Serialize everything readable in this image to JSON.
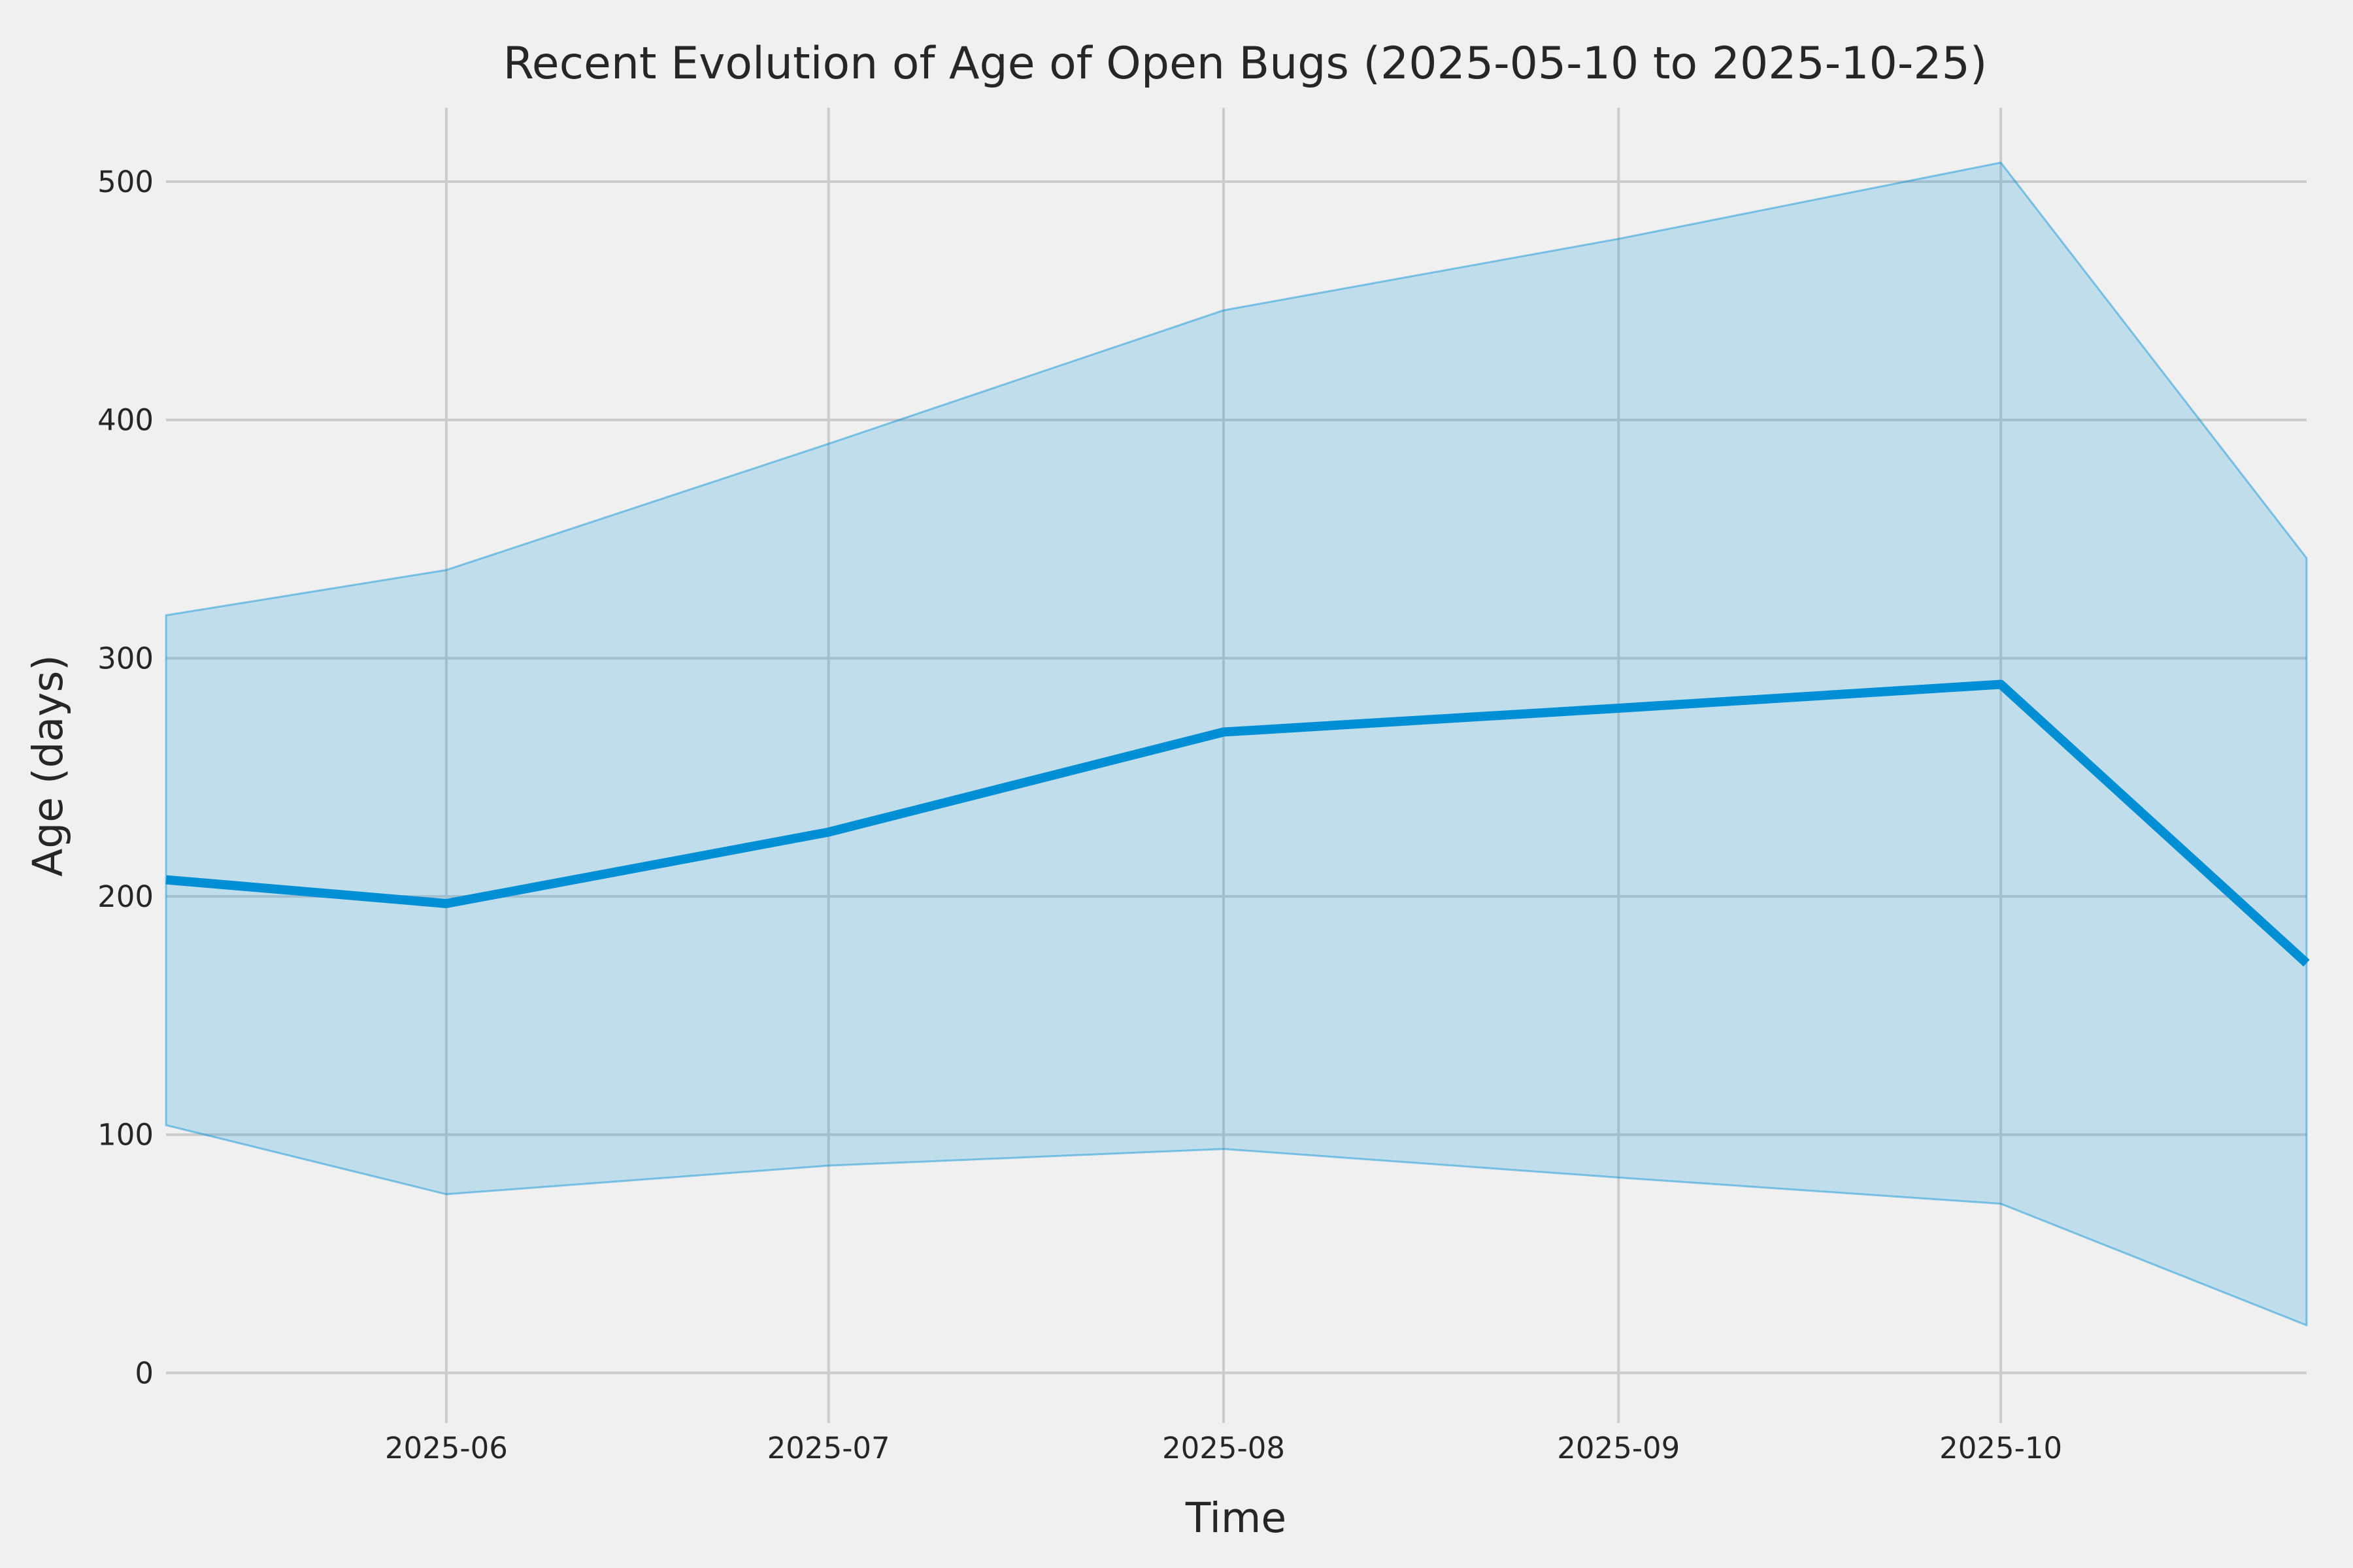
{
  "chart_data": {
    "type": "line",
    "title": "Recent Evolution of Age of Open Bugs (2025-05-10 to 2025-10-25)",
    "xlabel": "Time",
    "ylabel": "Age (days)",
    "x_dates": [
      "2025-05-10",
      "2025-06-01",
      "2025-07-01",
      "2025-08-01",
      "2025-09-01",
      "2025-10-01",
      "2025-10-25"
    ],
    "x_days": [
      0,
      22,
      52,
      83,
      114,
      144,
      168
    ],
    "series": [
      {
        "name": "age_line",
        "values": [
          207,
          197,
          227,
          269,
          279,
          289,
          172
        ]
      },
      {
        "name": "band_low",
        "values": [
          104,
          75,
          87,
          94,
          82,
          71,
          20
        ]
      },
      {
        "name": "band_high",
        "values": [
          318,
          337,
          390,
          446,
          476,
          508,
          342
        ]
      }
    ],
    "x_ticks": [
      {
        "day": 22,
        "label": "2025-06"
      },
      {
        "day": 52,
        "label": "2025-07"
      },
      {
        "day": 83,
        "label": "2025-08"
      },
      {
        "day": 114,
        "label": "2025-09"
      },
      {
        "day": 144,
        "label": "2025-10"
      }
    ],
    "y_ticks": [
      0,
      100,
      200,
      300,
      400,
      500
    ],
    "ylim": [
      -21,
      531
    ],
    "xlim_days": [
      0,
      168
    ],
    "grid": true,
    "legend": "none",
    "colors": {
      "background": "#f0f0f0",
      "gridline": "#cbcbcb",
      "line": "#008fd5",
      "band_fill": "#008fd5",
      "band_fill_opacity": "0.2",
      "band_edge_opacity": "0.45",
      "text": "#262626"
    }
  }
}
